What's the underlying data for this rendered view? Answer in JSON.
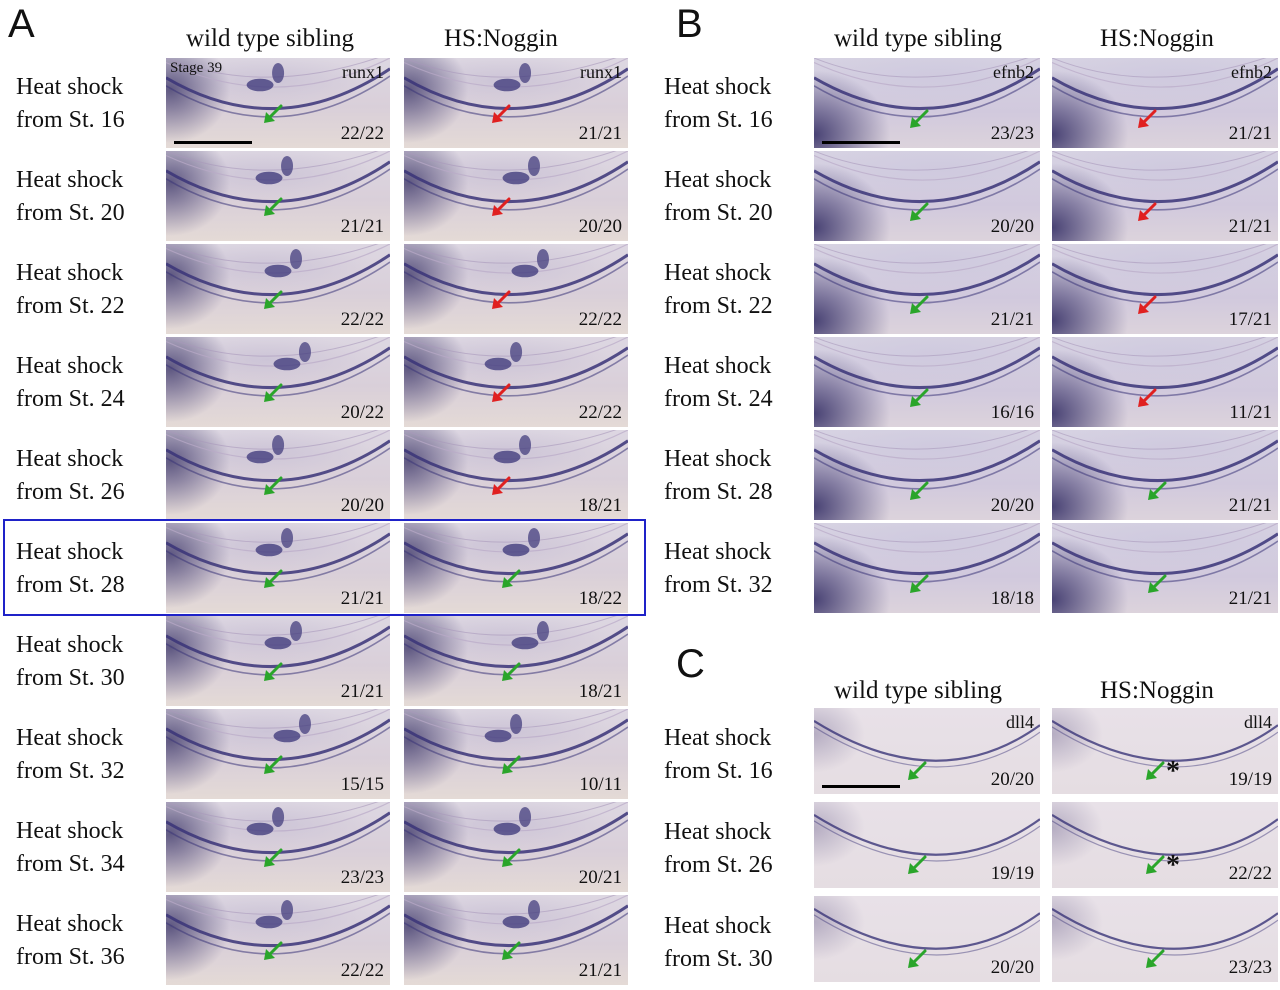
{
  "panel_a": {
    "letter": "A",
    "col_wt": "wild type sibling",
    "col_hs": "HS:Noggin",
    "stage_label": "Stage 39",
    "gene": "runx1",
    "rows": [
      {
        "label1": "Heat shock",
        "label2": "from St. 16",
        "wt_count": "22/22",
        "hs_count": "21/21",
        "hs_arrow": "red"
      },
      {
        "label1": "Heat shock",
        "label2": "from St. 20",
        "wt_count": "21/21",
        "hs_count": "20/20",
        "hs_arrow": "red"
      },
      {
        "label1": "Heat shock",
        "label2": "from St. 22",
        "wt_count": "22/22",
        "hs_count": "22/22",
        "hs_arrow": "red"
      },
      {
        "label1": "Heat shock",
        "label2": "from St. 24",
        "wt_count": "20/22",
        "hs_count": "22/22",
        "hs_arrow": "red"
      },
      {
        "label1": "Heat shock",
        "label2": "from St. 26",
        "wt_count": "20/20",
        "hs_count": "18/21",
        "hs_arrow": "red"
      },
      {
        "label1": "Heat shock",
        "label2": "from St. 28",
        "wt_count": "21/21",
        "hs_count": "18/22",
        "hs_arrow": "green"
      },
      {
        "label1": "Heat shock",
        "label2": "from St. 30",
        "wt_count": "21/21",
        "hs_count": "18/21",
        "hs_arrow": "green"
      },
      {
        "label1": "Heat shock",
        "label2": "from St. 32",
        "wt_count": "15/15",
        "hs_count": "10/11",
        "hs_arrow": "green"
      },
      {
        "label1": "Heat shock",
        "label2": "from St. 34",
        "wt_count": "23/23",
        "hs_count": "20/21",
        "hs_arrow": "green"
      },
      {
        "label1": "Heat shock",
        "label2": "from St. 36",
        "wt_count": "22/22",
        "hs_count": "21/21",
        "hs_arrow": "green"
      }
    ]
  },
  "panel_b": {
    "letter": "B",
    "col_wt": "wild type sibling",
    "col_hs": "HS:Noggin",
    "gene": "efnb2",
    "rows": [
      {
        "label1": "Heat shock",
        "label2": "from St. 16",
        "wt_count": "23/23",
        "hs_count": "21/21",
        "hs_arrow": "red"
      },
      {
        "label1": "Heat shock",
        "label2": "from St. 20",
        "wt_count": "20/20",
        "hs_count": "21/21",
        "hs_arrow": "red"
      },
      {
        "label1": "Heat shock",
        "label2": "from St. 22",
        "wt_count": "21/21",
        "hs_count": "17/21",
        "hs_arrow": "red"
      },
      {
        "label1": "Heat shock",
        "label2": "from St. 24",
        "wt_count": "16/16",
        "hs_count": "11/21",
        "hs_arrow": "red"
      },
      {
        "label1": "Heat shock",
        "label2": "from St. 28",
        "wt_count": "20/20",
        "hs_count": "21/21",
        "hs_arrow": "green"
      },
      {
        "label1": "Heat shock",
        "label2": "from St. 32",
        "wt_count": "18/18",
        "hs_count": "21/21",
        "hs_arrow": "green"
      }
    ]
  },
  "panel_c": {
    "letter": "C",
    "col_wt": "wild type sibling",
    "col_hs": "HS:Noggin",
    "gene": "dll4",
    "asterisk": "*",
    "rows": [
      {
        "label1": "Heat shock",
        "label2": "from St. 16",
        "wt_count": "20/20",
        "hs_count": "19/19",
        "hs_arrow": "green",
        "asterisk": true
      },
      {
        "label1": "Heat shock",
        "label2": "from St. 26",
        "wt_count": "19/19",
        "hs_count": "22/22",
        "hs_arrow": "green",
        "asterisk": true
      },
      {
        "label1": "Heat shock",
        "label2": "from St. 30",
        "wt_count": "20/20",
        "hs_count": "23/23",
        "hs_arrow": "green",
        "asterisk": false
      }
    ]
  },
  "colors": {
    "green_arrow": "#2aa52a",
    "red_arrow": "#e02020",
    "stain": "#3a3478",
    "highlight_box": "#1f22c8"
  }
}
